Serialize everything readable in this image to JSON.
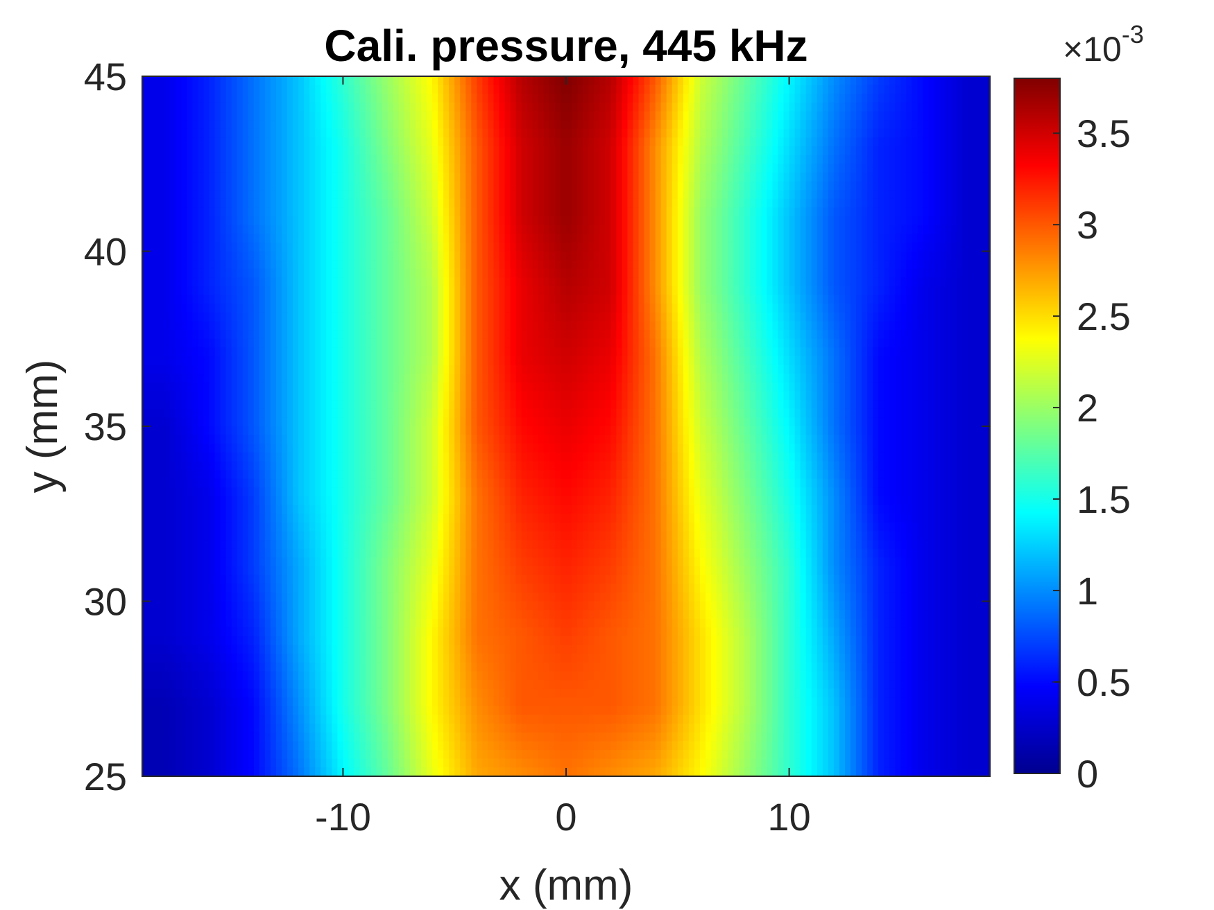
{
  "chart_data": {
    "type": "heatmap",
    "title": "Cali. pressure, 445 kHz",
    "xlabel": "x (mm)",
    "ylabel": "y (mm)",
    "xlim": [
      -19,
      19
    ],
    "ylim": [
      25,
      45
    ],
    "x_ticks": [
      -10,
      0,
      10
    ],
    "x_tick_labels": [
      "-10",
      "0",
      "10"
    ],
    "y_ticks": [
      25,
      30,
      35,
      40,
      45
    ],
    "y_tick_labels": [
      "25",
      "30",
      "35",
      "40",
      "45"
    ],
    "colormap": "jet",
    "colorbar": {
      "range": [
        0,
        3.8
      ],
      "ticks": [
        0,
        0.5,
        1,
        1.5,
        2,
        2.5,
        3,
        3.5
      ],
      "tick_labels": [
        "0",
        "0.5",
        "1",
        "1.5",
        "2",
        "2.5",
        "3",
        "3.5"
      ],
      "multiplier_base": "×10",
      "multiplier_exponent": "-3"
    },
    "grid": false,
    "x": [
      -18,
      -16,
      -14,
      -12,
      -10,
      -8,
      -6,
      -4,
      -2,
      0,
      2,
      4,
      6,
      8,
      10,
      12,
      14,
      16,
      18
    ],
    "y": [
      25,
      27,
      29,
      31,
      33,
      35,
      37,
      39,
      41,
      43,
      45
    ],
    "z": [
      [
        0.2,
        0.3,
        0.5,
        0.9,
        1.4,
        1.8,
        2.3,
        2.7,
        2.8,
        2.9,
        2.8,
        2.7,
        2.4,
        2.0,
        1.6,
        1.2,
        0.6,
        0.4,
        0.3
      ],
      [
        0.2,
        0.3,
        0.5,
        1.0,
        1.5,
        1.9,
        2.4,
        2.8,
        3.0,
        3.0,
        3.0,
        2.9,
        2.5,
        2.1,
        1.6,
        1.2,
        0.6,
        0.4,
        0.3
      ],
      [
        0.3,
        0.4,
        0.6,
        1.1,
        1.5,
        1.9,
        2.4,
        2.9,
        3.0,
        3.1,
        3.0,
        2.9,
        2.5,
        2.1,
        1.6,
        1.1,
        0.6,
        0.4,
        0.3
      ],
      [
        0.3,
        0.4,
        0.7,
        1.1,
        1.5,
        1.9,
        2.3,
        2.9,
        3.1,
        3.2,
        3.1,
        2.9,
        2.4,
        2.0,
        1.6,
        1.0,
        0.6,
        0.4,
        0.3
      ],
      [
        0.3,
        0.4,
        0.7,
        1.2,
        1.5,
        1.8,
        2.2,
        2.9,
        3.2,
        3.3,
        3.2,
        2.9,
        2.3,
        1.9,
        1.5,
        1.0,
        0.5,
        0.4,
        0.3
      ],
      [
        0.3,
        0.5,
        0.8,
        1.2,
        1.5,
        1.8,
        2.2,
        3.0,
        3.3,
        3.4,
        3.3,
        2.9,
        2.2,
        1.8,
        1.4,
        0.9,
        0.5,
        0.4,
        0.3
      ],
      [
        0.4,
        0.5,
        0.8,
        1.2,
        1.5,
        1.8,
        2.1,
        3.0,
        3.4,
        3.5,
        3.4,
        2.9,
        2.1,
        1.7,
        1.3,
        0.9,
        0.5,
        0.4,
        0.3
      ],
      [
        0.4,
        0.6,
        0.8,
        1.2,
        1.5,
        1.8,
        2.1,
        3.0,
        3.4,
        3.6,
        3.5,
        2.8,
        2.0,
        1.6,
        1.2,
        0.8,
        0.6,
        0.4,
        0.3
      ],
      [
        0.4,
        0.6,
        0.9,
        1.2,
        1.5,
        1.8,
        2.2,
        3.0,
        3.5,
        3.7,
        3.5,
        2.8,
        2.0,
        1.6,
        1.2,
        0.8,
        0.6,
        0.5,
        0.3
      ],
      [
        0.4,
        0.6,
        0.9,
        1.2,
        1.5,
        1.9,
        2.3,
        3.0,
        3.5,
        3.7,
        3.5,
        2.8,
        2.1,
        1.7,
        1.3,
        0.9,
        0.6,
        0.5,
        0.3
      ],
      [
        0.4,
        0.6,
        0.9,
        1.2,
        1.6,
        2.0,
        2.4,
        3.1,
        3.6,
        3.8,
        3.6,
        3.0,
        2.2,
        1.8,
        1.4,
        1.0,
        0.7,
        0.5,
        0.3
      ]
    ]
  }
}
